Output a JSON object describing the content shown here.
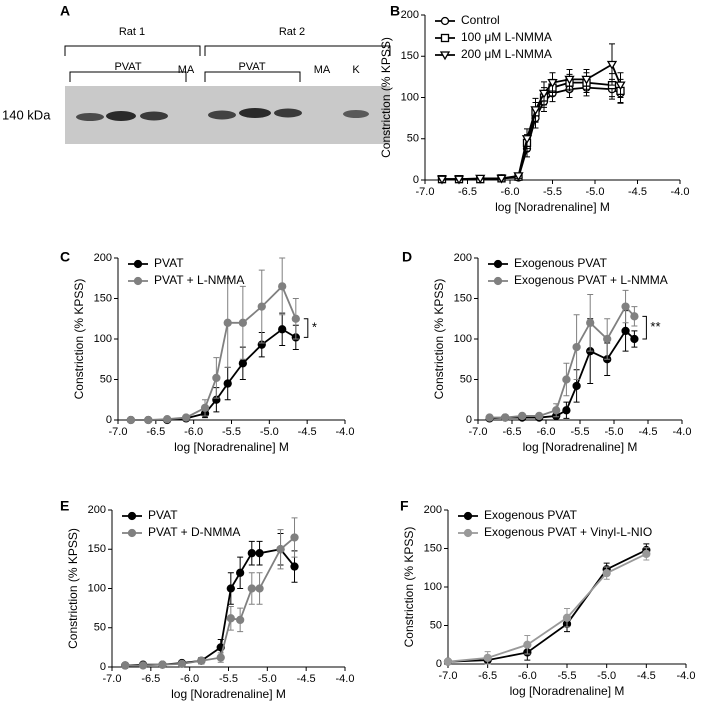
{
  "blot": {
    "label": "A",
    "groups": [
      "Rat 1",
      "Rat 2"
    ],
    "lanes": [
      "PVAT",
      "MA",
      "PVAT",
      "MA",
      "K"
    ],
    "marker": "140 kDa"
  },
  "chart_data": [
    {
      "type": "scatter",
      "label": "B",
      "xlabel": "log [Noradrenaline] M",
      "ylabel": "Constriction (% KPSS)",
      "xlim": [
        -7,
        -4
      ],
      "xticks": [
        {
          "value": -7,
          "label": "-7.0"
        },
        {
          "value": -6.5,
          "label": "-6.5"
        },
        {
          "value": -6,
          "label": "-6.0"
        },
        {
          "value": -5.5,
          "label": "-5.5"
        },
        {
          "value": -5,
          "label": "-5.0"
        },
        {
          "value": -4.5,
          "label": "-4.5"
        },
        {
          "value": -4,
          "label": "-4.0"
        }
      ],
      "ylim": [
        0,
        200
      ],
      "yticks": [
        0,
        50,
        100,
        150,
        200
      ],
      "x": [
        -6.8,
        -6.6,
        -6.35,
        -6.1,
        -5.9,
        -5.8,
        -5.7,
        -5.6,
        -5.5,
        -5.3,
        -5.1,
        -4.8,
        -4.7
      ],
      "series": [
        {
          "name": "Control",
          "color": "#000000",
          "marker": "circle-open",
          "values": [
            1,
            1,
            1,
            2,
            3,
            38,
            75,
            95,
            105,
            110,
            112,
            110,
            105
          ],
          "errors": [
            1,
            1,
            1,
            2,
            3,
            10,
            12,
            12,
            10,
            10,
            10,
            12,
            12
          ]
        },
        {
          "name": "100 μM L-NMMA",
          "color": "#000000",
          "marker": "square-open",
          "values": [
            1,
            1,
            1,
            2,
            4,
            45,
            82,
            100,
            112,
            118,
            118,
            115,
            108
          ],
          "errors": [
            1,
            1,
            1,
            2,
            3,
            10,
            12,
            12,
            10,
            10,
            12,
            14,
            14
          ]
        },
        {
          "name": "200 μM L-NMMA",
          "color": "#000000",
          "marker": "triangle-open",
          "values": [
            1,
            1,
            2,
            2,
            5,
            50,
            85,
            105,
            118,
            122,
            122,
            140,
            115
          ],
          "errors": [
            1,
            1,
            1,
            2,
            3,
            12,
            14,
            14,
            12,
            12,
            12,
            25,
            15
          ]
        }
      ]
    },
    {
      "type": "scatter",
      "label": "C",
      "xlabel": "log [Noradrenaline] M",
      "ylabel": "Constriction (% KPSS)",
      "annotation": "*",
      "xlim": [
        -7,
        -4
      ],
      "xticks": [
        {
          "value": -7,
          "label": "-7.0"
        },
        {
          "value": -6.5,
          "label": "-6.5"
        },
        {
          "value": -6,
          "label": "-6.0"
        },
        {
          "value": -5.5,
          "label": "-5.5"
        },
        {
          "value": -5,
          "label": "-5.0"
        },
        {
          "value": -4.5,
          "label": "-4.5"
        },
        {
          "value": -4,
          "label": "-4.0"
        }
      ],
      "ylim": [
        0,
        200
      ],
      "yticks": [
        0,
        50,
        100,
        150,
        200
      ],
      "x": [
        -6.83,
        -6.6,
        -6.35,
        -6.1,
        -5.85,
        -5.7,
        -5.55,
        -5.35,
        -5.1,
        -4.83,
        -4.65
      ],
      "series": [
        {
          "name": "PVAT",
          "color": "#000000",
          "marker": "circle",
          "values": [
            0,
            0,
            0,
            2,
            8,
            25,
            45,
            70,
            93,
            112,
            102
          ],
          "errors": [
            0,
            0,
            0,
            2,
            5,
            15,
            20,
            20,
            15,
            20,
            15
          ]
        },
        {
          "name": "PVAT + L-NMMA",
          "color": "#808080",
          "marker": "circle",
          "values": [
            0,
            0,
            1,
            3,
            15,
            52,
            120,
            120,
            140,
            165,
            125
          ],
          "errors": [
            0,
            0,
            1,
            3,
            10,
            25,
            55,
            45,
            45,
            35,
            25
          ]
        }
      ]
    },
    {
      "type": "scatter",
      "label": "D",
      "xlabel": "log [Noradrenaline] M",
      "ylabel": "Constriction (% KPSS)",
      "annotation": "**",
      "xlim": [
        -7,
        -4
      ],
      "xticks": [
        {
          "value": -7,
          "label": "-7.0"
        },
        {
          "value": -6.5,
          "label": "-6.5"
        },
        {
          "value": -6,
          "label": "-6.0"
        },
        {
          "value": -5.5,
          "label": "-5.5"
        },
        {
          "value": -5,
          "label": "-5.0"
        },
        {
          "value": -4.5,
          "label": "-4.5"
        },
        {
          "value": -4,
          "label": "-4.0"
        }
      ],
      "ylim": [
        0,
        200
      ],
      "yticks": [
        0,
        50,
        100,
        150,
        200
      ],
      "x": [
        -6.83,
        -6.6,
        -6.35,
        -6.1,
        -5.85,
        -5.7,
        -5.55,
        -5.35,
        -5.1,
        -4.83,
        -4.7
      ],
      "series": [
        {
          "name": "Exogenous PVAT",
          "color": "#000000",
          "marker": "circle",
          "values": [
            2,
            3,
            3,
            3,
            5,
            12,
            42,
            85,
            75,
            110,
            100
          ],
          "errors": [
            2,
            2,
            2,
            2,
            3,
            10,
            20,
            40,
            20,
            25,
            10
          ]
        },
        {
          "name": "Exogenous PVAT + L-NMMA",
          "color": "#808080",
          "marker": "circle",
          "values": [
            3,
            3,
            5,
            5,
            12,
            50,
            90,
            120,
            100,
            140,
            128
          ],
          "errors": [
            3,
            3,
            3,
            3,
            8,
            20,
            40,
            35,
            25,
            20,
            12
          ]
        }
      ]
    },
    {
      "type": "scatter",
      "label": "E",
      "xlabel": "log [Noradrenaline] M",
      "ylabel": "Constriction (% KPSS)",
      "xlim": [
        -7,
        -4
      ],
      "xticks": [
        {
          "value": -7,
          "label": "-7.0"
        },
        {
          "value": -6.5,
          "label": "-6.5"
        },
        {
          "value": -6,
          "label": "-6.0"
        },
        {
          "value": -5.5,
          "label": "-5.5"
        },
        {
          "value": -5,
          "label": "-5.0"
        },
        {
          "value": -4.5,
          "label": "-4.5"
        },
        {
          "value": -4,
          "label": "-4.0"
        }
      ],
      "ylim": [
        0,
        200
      ],
      "yticks": [
        0,
        50,
        100,
        150,
        200
      ],
      "x": [
        -6.83,
        -6.6,
        -6.35,
        -6.1,
        -5.85,
        -5.6,
        -5.47,
        -5.35,
        -5.2,
        -5.1,
        -4.83,
        -4.65
      ],
      "series": [
        {
          "name": "PVAT",
          "color": "#000000",
          "marker": "circle",
          "values": [
            2,
            3,
            3,
            5,
            8,
            25,
            100,
            120,
            145,
            145,
            150,
            128
          ],
          "errors": [
            1,
            1,
            1,
            2,
            4,
            10,
            20,
            20,
            15,
            15,
            20,
            20
          ]
        },
        {
          "name": "PVAT + D-NMMA",
          "color": "#808080",
          "marker": "circle",
          "values": [
            2,
            2,
            3,
            4,
            8,
            12,
            62,
            60,
            100,
            100,
            150,
            165
          ],
          "errors": [
            1,
            1,
            1,
            2,
            4,
            6,
            15,
            15,
            20,
            20,
            25,
            25
          ]
        }
      ]
    },
    {
      "type": "scatter",
      "label": "F",
      "xlabel": "log [Noradrenaline] M",
      "ylabel": "Constriction (% KPSS)",
      "xlim": [
        -7,
        -4
      ],
      "xticks": [
        {
          "value": -7,
          "label": "-7.0"
        },
        {
          "value": -6.5,
          "label": "-6.5"
        },
        {
          "value": -6,
          "label": "-6.0"
        },
        {
          "value": -5.5,
          "label": "-5.5"
        },
        {
          "value": -5,
          "label": "-5.0"
        },
        {
          "value": -4.5,
          "label": "-4.5"
        },
        {
          "value": -4,
          "label": "-4.0"
        }
      ],
      "ylim": [
        0,
        200
      ],
      "yticks": [
        0,
        50,
        100,
        150,
        200
      ],
      "x": [
        -7,
        -6.5,
        -6,
        -5.5,
        -5,
        -4.5
      ],
      "series": [
        {
          "name": "Exogenous PVAT",
          "color": "#000000",
          "marker": "circle",
          "values": [
            3,
            5,
            15,
            52,
            123,
            148
          ],
          "errors": [
            2,
            5,
            10,
            10,
            8,
            8
          ]
        },
        {
          "name": "Exogenous PVAT + Vinyl-L-NIO",
          "color": "#999999",
          "marker": "circle",
          "values": [
            3,
            8,
            25,
            60,
            118,
            143
          ],
          "errors": [
            3,
            8,
            12,
            12,
            8,
            8
          ]
        }
      ]
    }
  ]
}
